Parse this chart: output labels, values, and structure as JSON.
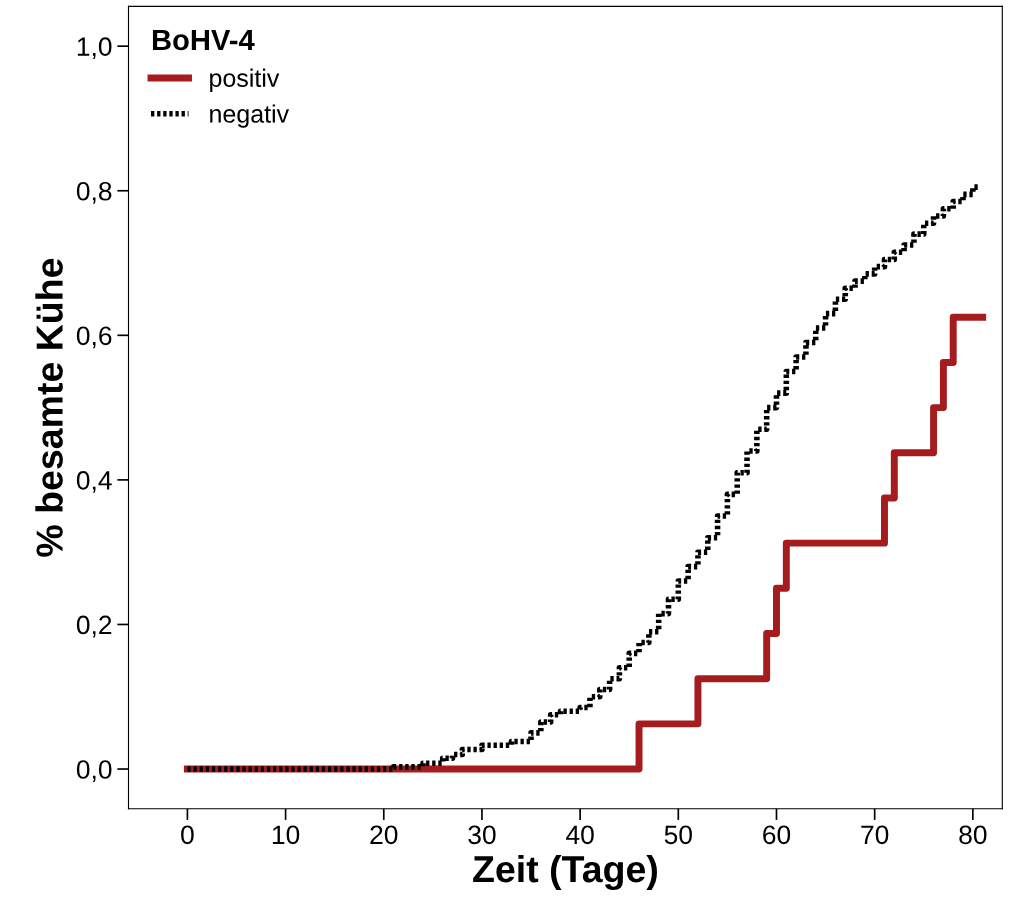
{
  "chart_data": {
    "type": "step",
    "xlabel": "Zeit (Tage)",
    "ylabel": "% besamte Kühe",
    "legend_title": "BoHV-4",
    "legend": "top left",
    "grid": false,
    "xlim": [
      -6,
      83
    ],
    "ylim": [
      -0.055,
      1.055
    ],
    "xticks": [
      0,
      10,
      20,
      30,
      40,
      50,
      60,
      70,
      80
    ],
    "yticks": [
      {
        "value": 0,
        "label": "0,0"
      },
      {
        "value": 0.2,
        "label": "0,2"
      },
      {
        "value": 0.4,
        "label": "0,4"
      },
      {
        "value": 0.6,
        "label": "0,6"
      },
      {
        "value": 0.8,
        "label": "0,8"
      },
      {
        "value": 1.0,
        "label": "1,0"
      }
    ],
    "series": [
      {
        "name": "positiv",
        "color": "#a51c1f",
        "line_style": "solid",
        "x": [
          0,
          46,
          52,
          59,
          60,
          61,
          71,
          72,
          76,
          77,
          78,
          81
        ],
        "values": [
          0,
          0.0625,
          0.125,
          0.1875,
          0.25,
          0.3125,
          0.375,
          0.4375,
          0.5,
          0.5625,
          0.625,
          0.625
        ]
      },
      {
        "name": "negativ",
        "color": "#000000",
        "line_style": "dotted",
        "x": [
          0,
          21,
          24,
          26,
          27,
          28,
          30,
          33,
          35,
          36,
          37,
          38,
          40,
          41,
          42,
          43,
          44,
          45,
          46,
          47,
          48,
          49,
          50,
          51,
          52,
          53,
          54,
          55,
          56,
          57,
          58,
          59,
          60,
          61,
          62,
          63,
          64,
          65,
          66,
          67,
          68,
          69,
          70,
          71,
          72,
          73,
          74,
          75,
          76,
          77,
          78,
          79,
          80,
          80.5
        ],
        "values": [
          0,
          0.003,
          0.008,
          0.015,
          0.02,
          0.027,
          0.033,
          0.038,
          0.05,
          0.065,
          0.075,
          0.08,
          0.085,
          0.1,
          0.11,
          0.125,
          0.14,
          0.16,
          0.175,
          0.19,
          0.215,
          0.235,
          0.26,
          0.28,
          0.3,
          0.32,
          0.35,
          0.38,
          0.41,
          0.44,
          0.47,
          0.5,
          0.52,
          0.55,
          0.57,
          0.59,
          0.61,
          0.63,
          0.65,
          0.665,
          0.675,
          0.685,
          0.695,
          0.705,
          0.715,
          0.725,
          0.74,
          0.755,
          0.765,
          0.775,
          0.785,
          0.795,
          0.805,
          0.805
        ]
      }
    ]
  }
}
